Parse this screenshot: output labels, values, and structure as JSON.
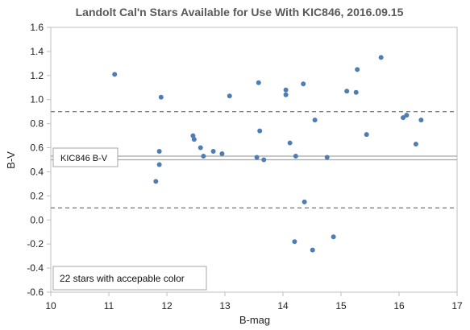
{
  "chart_data": {
    "type": "scatter",
    "title": "Landolt Cal'n Stars Available for Use  With KIC846, 2016.09.15",
    "xlabel": "B-mag",
    "ylabel": "B-V",
    "xlim": [
      10,
      17
    ],
    "ylim": [
      -0.6,
      1.6
    ],
    "xticks": [
      10,
      11,
      12,
      13,
      14,
      15,
      16,
      17
    ],
    "yticks": [
      -0.6,
      -0.4,
      -0.2,
      0.0,
      0.2,
      0.4,
      0.6,
      0.8,
      1.0,
      1.2,
      1.4,
      1.6
    ],
    "yticks_labels": [
      "-0.6",
      "-0.4",
      "-0.2",
      "0.0",
      "0.2",
      "0.4",
      "0.6",
      "0.8",
      "1.0",
      "1.2",
      "1.4",
      "1.6"
    ],
    "grid": false,
    "marker_color": "#4e7db3",
    "points": [
      {
        "x": 11.1,
        "y": 1.21
      },
      {
        "x": 11.81,
        "y": 0.32
      },
      {
        "x": 11.87,
        "y": 0.57
      },
      {
        "x": 11.87,
        "y": 0.46
      },
      {
        "x": 11.9,
        "y": 1.02
      },
      {
        "x": 12.45,
        "y": 0.7
      },
      {
        "x": 12.47,
        "y": 0.67
      },
      {
        "x": 12.58,
        "y": 0.6
      },
      {
        "x": 12.63,
        "y": 0.53
      },
      {
        "x": 12.8,
        "y": 0.57
      },
      {
        "x": 12.95,
        "y": 0.55
      },
      {
        "x": 13.08,
        "y": 1.03
      },
      {
        "x": 13.55,
        "y": 0.52
      },
      {
        "x": 13.58,
        "y": 1.14
      },
      {
        "x": 13.6,
        "y": 0.74
      },
      {
        "x": 13.67,
        "y": 0.5
      },
      {
        "x": 14.05,
        "y": 1.08
      },
      {
        "x": 14.05,
        "y": 1.04
      },
      {
        "x": 14.12,
        "y": 0.64
      },
      {
        "x": 14.2,
        "y": -0.18
      },
      {
        "x": 14.22,
        "y": 0.53
      },
      {
        "x": 14.35,
        "y": 1.13
      },
      {
        "x": 14.37,
        "y": 0.15
      },
      {
        "x": 14.51,
        "y": -0.25
      },
      {
        "x": 14.55,
        "y": 0.83
      },
      {
        "x": 14.76,
        "y": 0.52
      },
      {
        "x": 14.87,
        "y": -0.14
      },
      {
        "x": 15.1,
        "y": 1.07
      },
      {
        "x": 15.26,
        "y": 1.06
      },
      {
        "x": 15.28,
        "y": 1.25
      },
      {
        "x": 15.44,
        "y": 0.71
      },
      {
        "x": 15.69,
        "y": 1.35
      },
      {
        "x": 16.07,
        "y": 0.85
      },
      {
        "x": 16.13,
        "y": 0.87
      },
      {
        "x": 16.29,
        "y": 0.63
      },
      {
        "x": 16.38,
        "y": 0.83
      }
    ],
    "reference_lines": [
      {
        "y": 0.9,
        "style": "dashed",
        "color": "#808080"
      },
      {
        "y": 0.1,
        "style": "dashed",
        "color": "#808080"
      },
      {
        "y": 0.53,
        "style": "solid",
        "color": "#a6a6a6"
      },
      {
        "y": 0.5,
        "style": "solid",
        "color": "#a6a6a6"
      }
    ],
    "annotations": [
      {
        "text": "KIC846 B-V"
      },
      {
        "text": "22 stars with accepable color"
      }
    ]
  }
}
